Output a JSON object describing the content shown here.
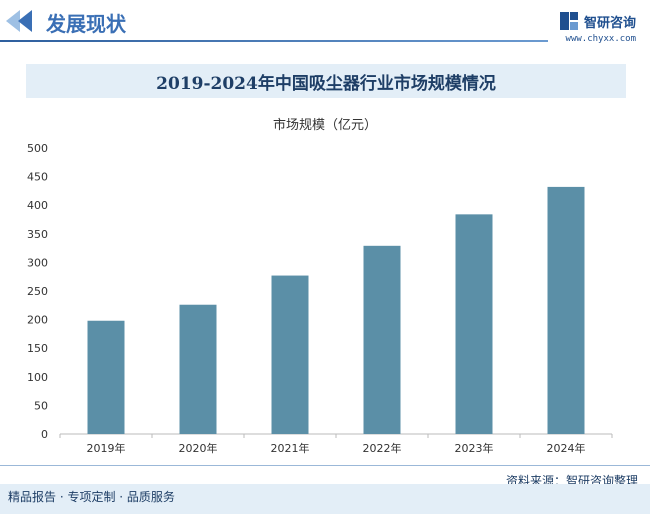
{
  "header": {
    "title": "发展现状",
    "brand_name": "智研咨询",
    "brand_url": "www.chyxx.com"
  },
  "chart_title": "2019-2024年中国吸尘器行业市场规模情况",
  "footer": {
    "left": "精品报告 · 专项定制 · 品质服务",
    "right": "资料来源：智研咨询整理"
  },
  "colors": {
    "bar": "#5b8fa7",
    "accent": "#3a6fb5",
    "band": "#e3eef7"
  },
  "chart_data": {
    "type": "bar",
    "categories": [
      "2019年",
      "2020年",
      "2021年",
      "2022年",
      "2023年",
      "2024年"
    ],
    "series": [
      {
        "name": "市场规模（亿元）",
        "values": [
          198,
          226,
          277,
          329,
          384,
          432
        ]
      }
    ],
    "ylim": [
      0,
      500
    ],
    "yticks": [
      0,
      50,
      100,
      150,
      200,
      250,
      300,
      350,
      400,
      450,
      500
    ],
    "grid": false,
    "legend": "top-center"
  }
}
